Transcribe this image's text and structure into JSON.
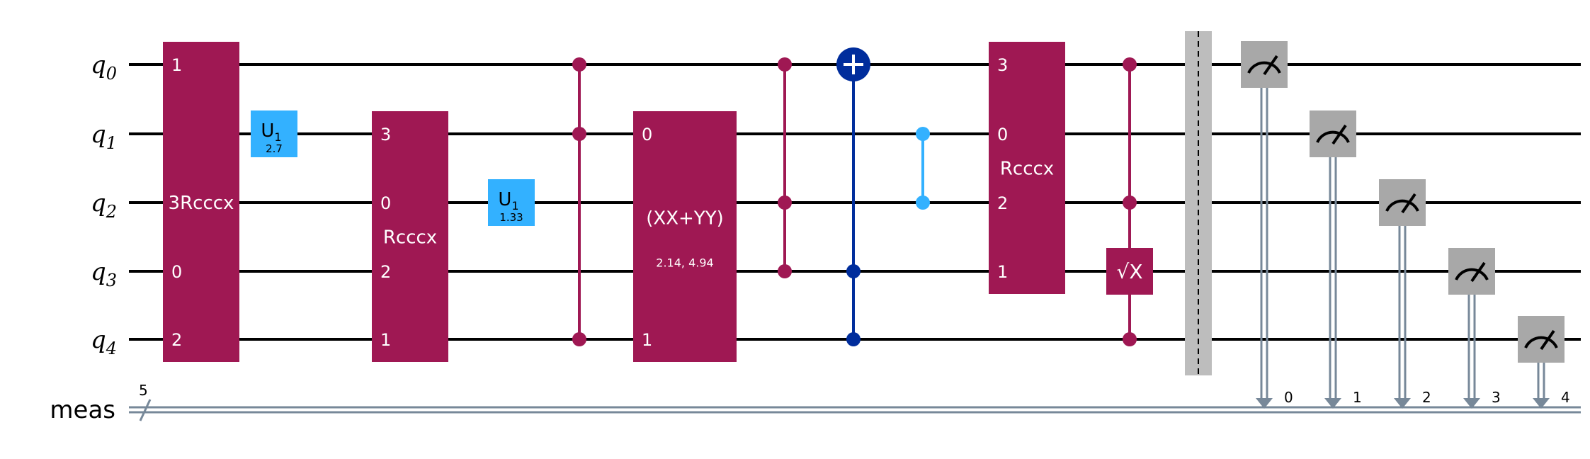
{
  "colors": {
    "multi": "#9f1853",
    "u1": "#33b1ff",
    "cx": "#002d9c",
    "cz": "#33b1ff",
    "measure": "#a8a8a8",
    "barrier": "#bdbdbd",
    "classical": "#778899"
  },
  "circuit": {
    "qubits": [
      {
        "base": "q",
        "idx": "0"
      },
      {
        "base": "q",
        "idx": "1"
      },
      {
        "base": "q",
        "idx": "2"
      },
      {
        "base": "q",
        "idx": "3"
      },
      {
        "base": "q",
        "idx": "4"
      }
    ],
    "creg": {
      "name": "meas",
      "size": "5"
    },
    "gates": [
      {
        "kind": "multi",
        "label": "3Rcccx",
        "labelRow": 2,
        "col": 0,
        "rows": [
          0,
          4
        ],
        "pins": [
          {
            "row": 0,
            "text": "1"
          },
          {
            "row": 3,
            "text": "0"
          },
          {
            "row": 4,
            "text": "2"
          }
        ]
      },
      {
        "kind": "u1",
        "label": "U",
        "sub": "1",
        "param": "2.7",
        "col": 1,
        "row": 1
      },
      {
        "kind": "multi",
        "label": "Rcccx",
        "labelRow": 2.5,
        "col": 2,
        "rows": [
          1,
          4
        ],
        "pins": [
          {
            "row": 1,
            "text": "3"
          },
          {
            "row": 2,
            "text": "0"
          },
          {
            "row": 3,
            "text": "2"
          },
          {
            "row": 4,
            "text": "1"
          }
        ]
      },
      {
        "kind": "u1",
        "label": "U",
        "sub": "1",
        "param": "1.33",
        "col": 3,
        "row": 2
      },
      {
        "kind": "ctrlz",
        "col": 4,
        "dots": [
          0,
          1,
          4
        ]
      },
      {
        "kind": "multi",
        "label": "(XX+YY)",
        "param": "2.14, 4.94",
        "labelRow": 2.5,
        "col": 5,
        "rows": [
          1,
          4
        ],
        "wide": true,
        "pins": [
          {
            "row": 1,
            "text": "0"
          },
          {
            "row": 4,
            "text": "1"
          }
        ]
      },
      {
        "kind": "ctrlz",
        "col": 6,
        "dots": [
          0,
          2,
          3
        ]
      },
      {
        "kind": "cx",
        "col": 7,
        "target": 0,
        "dots": [
          3,
          4
        ]
      },
      {
        "kind": "cz",
        "col": 8,
        "dots": [
          1,
          2
        ]
      },
      {
        "kind": "multi",
        "label": "Rcccx",
        "labelRow": 1.5,
        "col": 9,
        "rows": [
          0,
          3
        ],
        "pins": [
          {
            "row": 0,
            "text": "3"
          },
          {
            "row": 1,
            "text": "0"
          },
          {
            "row": 2,
            "text": "2"
          },
          {
            "row": 3,
            "text": "1"
          }
        ]
      },
      {
        "kind": "csx",
        "label": "√X",
        "col": 10,
        "target": 3,
        "dots": [
          0,
          2,
          4
        ]
      },
      {
        "kind": "barrier",
        "col": 11
      },
      {
        "kind": "measure",
        "col": 12,
        "row": 0,
        "bit": "0"
      },
      {
        "kind": "measure",
        "col": 13,
        "row": 1,
        "bit": "1"
      },
      {
        "kind": "measure",
        "col": 14,
        "row": 2,
        "bit": "2"
      },
      {
        "kind": "measure",
        "col": 15,
        "row": 3,
        "bit": "3"
      },
      {
        "kind": "measure",
        "col": 16,
        "row": 4,
        "bit": "4"
      }
    ]
  }
}
